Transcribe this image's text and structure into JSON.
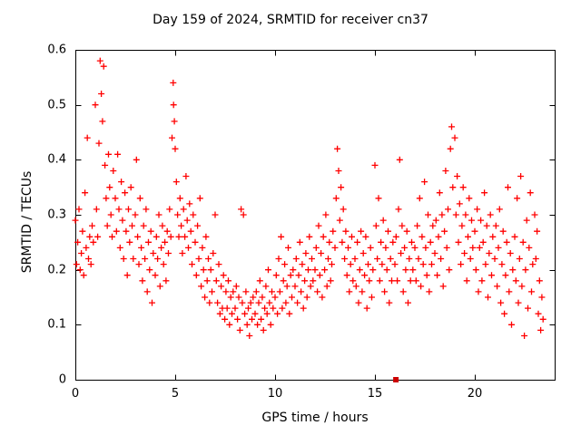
{
  "chart_data": {
    "type": "scatter",
    "title": "Day 159 of 2024, SRMTID for receiver cn37",
    "xlabel": "GPS time / hours",
    "ylabel": "SRMTID / TECUs",
    "xlim": [
      0,
      24
    ],
    "ylim": [
      0,
      0.6
    ],
    "xticks": [
      0,
      5,
      10,
      15,
      20
    ],
    "xtick_labels": [
      "0",
      "5",
      "10",
      "15",
      "20"
    ],
    "yticks": [
      0,
      0.1,
      0.2,
      0.3,
      0.4,
      0.5,
      0.6
    ],
    "ytick_labels": [
      "0",
      "0.1",
      "0.2",
      "0.3",
      "0.4",
      "0.5",
      "0.6"
    ],
    "grid": false,
    "legend": "none",
    "marker": "plus",
    "marker_color": "#ff0000",
    "flag_point": {
      "x": 16.05,
      "y": 0.0,
      "marker": "filled-square",
      "color": "#cc0000"
    },
    "points": [
      [
        0.0,
        0.29
      ],
      [
        0.06,
        0.21
      ],
      [
        0.12,
        0.25
      ],
      [
        0.18,
        0.31
      ],
      [
        0.24,
        0.2
      ],
      [
        0.3,
        0.23
      ],
      [
        0.36,
        0.27
      ],
      [
        0.42,
        0.19
      ],
      [
        0.48,
        0.34
      ],
      [
        0.54,
        0.24
      ],
      [
        0.6,
        0.44
      ],
      [
        0.66,
        0.22
      ],
      [
        0.72,
        0.26
      ],
      [
        0.78,
        0.21
      ],
      [
        0.84,
        0.28
      ],
      [
        0.9,
        0.25
      ],
      [
        1.0,
        0.5
      ],
      [
        1.06,
        0.31
      ],
      [
        1.12,
        0.26
      ],
      [
        1.18,
        0.43
      ],
      [
        1.24,
        0.58
      ],
      [
        1.3,
        0.52
      ],
      [
        1.36,
        0.47
      ],
      [
        1.42,
        0.57
      ],
      [
        1.48,
        0.39
      ],
      [
        1.54,
        0.33
      ],
      [
        1.6,
        0.28
      ],
      [
        1.66,
        0.41
      ],
      [
        1.72,
        0.35
      ],
      [
        1.78,
        0.3
      ],
      [
        1.84,
        0.26
      ],
      [
        1.9,
        0.38
      ],
      [
        2.0,
        0.33
      ],
      [
        2.06,
        0.27
      ],
      [
        2.12,
        0.41
      ],
      [
        2.18,
        0.31
      ],
      [
        2.24,
        0.24
      ],
      [
        2.3,
        0.36
      ],
      [
        2.36,
        0.29
      ],
      [
        2.42,
        0.22
      ],
      [
        2.48,
        0.34
      ],
      [
        2.54,
        0.27
      ],
      [
        2.6,
        0.19
      ],
      [
        2.66,
        0.31
      ],
      [
        2.72,
        0.25
      ],
      [
        2.78,
        0.35
      ],
      [
        2.84,
        0.28
      ],
      [
        2.9,
        0.22
      ],
      [
        3.0,
        0.3
      ],
      [
        3.06,
        0.4
      ],
      [
        3.12,
        0.26
      ],
      [
        3.18,
        0.21
      ],
      [
        3.24,
        0.33
      ],
      [
        3.3,
        0.24
      ],
      [
        3.36,
        0.18
      ],
      [
        3.42,
        0.28
      ],
      [
        3.48,
        0.22
      ],
      [
        3.54,
        0.31
      ],
      [
        3.6,
        0.16
      ],
      [
        3.66,
        0.25
      ],
      [
        3.72,
        0.2
      ],
      [
        3.78,
        0.27
      ],
      [
        3.84,
        0.14
      ],
      [
        3.9,
        0.23
      ],
      [
        4.0,
        0.19
      ],
      [
        4.06,
        0.26
      ],
      [
        4.12,
        0.22
      ],
      [
        4.18,
        0.3
      ],
      [
        4.24,
        0.17
      ],
      [
        4.3,
        0.24
      ],
      [
        4.36,
        0.28
      ],
      [
        4.42,
        0.21
      ],
      [
        4.48,
        0.25
      ],
      [
        4.54,
        0.18
      ],
      [
        4.6,
        0.27
      ],
      [
        4.66,
        0.23
      ],
      [
        4.72,
        0.31
      ],
      [
        4.78,
        0.26
      ],
      [
        4.84,
        0.44
      ],
      [
        4.9,
        0.54
      ],
      [
        4.92,
        0.5
      ],
      [
        4.96,
        0.47
      ],
      [
        5.0,
        0.42
      ],
      [
        5.06,
        0.36
      ],
      [
        5.12,
        0.3
      ],
      [
        5.18,
        0.26
      ],
      [
        5.24,
        0.33
      ],
      [
        5.3,
        0.28
      ],
      [
        5.36,
        0.23
      ],
      [
        5.42,
        0.31
      ],
      [
        5.48,
        0.26
      ],
      [
        5.54,
        0.37
      ],
      [
        5.6,
        0.29
      ],
      [
        5.66,
        0.24
      ],
      [
        5.72,
        0.32
      ],
      [
        5.78,
        0.27
      ],
      [
        5.84,
        0.21
      ],
      [
        5.9,
        0.3
      ],
      [
        6.0,
        0.25
      ],
      [
        6.06,
        0.19
      ],
      [
        6.12,
        0.28
      ],
      [
        6.18,
        0.22
      ],
      [
        6.24,
        0.33
      ],
      [
        6.3,
        0.17
      ],
      [
        6.36,
        0.24
      ],
      [
        6.42,
        0.2
      ],
      [
        6.48,
        0.15
      ],
      [
        6.54,
        0.26
      ],
      [
        6.6,
        0.18
      ],
      [
        6.66,
        0.22
      ],
      [
        6.72,
        0.14
      ],
      [
        6.78,
        0.2
      ],
      [
        6.84,
        0.16
      ],
      [
        6.9,
        0.23
      ],
      [
        7.0,
        0.3
      ],
      [
        7.06,
        0.18
      ],
      [
        7.12,
        0.14
      ],
      [
        7.18,
        0.21
      ],
      [
        7.24,
        0.12
      ],
      [
        7.3,
        0.17
      ],
      [
        7.36,
        0.13
      ],
      [
        7.42,
        0.19
      ],
      [
        7.48,
        0.11
      ],
      [
        7.54,
        0.16
      ],
      [
        7.6,
        0.13
      ],
      [
        7.66,
        0.18
      ],
      [
        7.72,
        0.1
      ],
      [
        7.78,
        0.15
      ],
      [
        7.84,
        0.12
      ],
      [
        7.9,
        0.16
      ],
      [
        8.0,
        0.13
      ],
      [
        8.06,
        0.17
      ],
      [
        8.12,
        0.11
      ],
      [
        8.18,
        0.15
      ],
      [
        8.24,
        0.09
      ],
      [
        8.3,
        0.31
      ],
      [
        8.36,
        0.14
      ],
      [
        8.42,
        0.3
      ],
      [
        8.48,
        0.12
      ],
      [
        8.54,
        0.16
      ],
      [
        8.6,
        0.1
      ],
      [
        8.66,
        0.13
      ],
      [
        8.72,
        0.08
      ],
      [
        8.78,
        0.14
      ],
      [
        8.84,
        0.11
      ],
      [
        8.9,
        0.15
      ],
      [
        9.0,
        0.12
      ],
      [
        9.06,
        0.16
      ],
      [
        9.12,
        0.1
      ],
      [
        9.18,
        0.14
      ],
      [
        9.24,
        0.18
      ],
      [
        9.3,
        0.11
      ],
      [
        9.36,
        0.15
      ],
      [
        9.42,
        0.09
      ],
      [
        9.48,
        0.13
      ],
      [
        9.54,
        0.17
      ],
      [
        9.6,
        0.12
      ],
      [
        9.66,
        0.2
      ],
      [
        9.72,
        0.14
      ],
      [
        9.78,
        0.1
      ],
      [
        9.84,
        0.16
      ],
      [
        9.9,
        0.13
      ],
      [
        10.0,
        0.15
      ],
      [
        10.06,
        0.19
      ],
      [
        10.12,
        0.12
      ],
      [
        10.18,
        0.22
      ],
      [
        10.24,
        0.16
      ],
      [
        10.3,
        0.26
      ],
      [
        10.36,
        0.13
      ],
      [
        10.42,
        0.18
      ],
      [
        10.48,
        0.21
      ],
      [
        10.54,
        0.14
      ],
      [
        10.6,
        0.17
      ],
      [
        10.66,
        0.24
      ],
      [
        10.72,
        0.12
      ],
      [
        10.78,
        0.19
      ],
      [
        10.84,
        0.15
      ],
      [
        10.9,
        0.2
      ],
      [
        11.0,
        0.17
      ],
      [
        11.06,
        0.22
      ],
      [
        11.12,
        0.14
      ],
      [
        11.18,
        0.19
      ],
      [
        11.24,
        0.25
      ],
      [
        11.3,
        0.16
      ],
      [
        11.36,
        0.21
      ],
      [
        11.42,
        0.13
      ],
      [
        11.48,
        0.18
      ],
      [
        11.54,
        0.23
      ],
      [
        11.6,
        0.15
      ],
      [
        11.66,
        0.2
      ],
      [
        11.72,
        0.26
      ],
      [
        11.78,
        0.17
      ],
      [
        11.84,
        0.22
      ],
      [
        11.9,
        0.18
      ],
      [
        12.0,
        0.2
      ],
      [
        12.06,
        0.24
      ],
      [
        12.12,
        0.16
      ],
      [
        12.18,
        0.28
      ],
      [
        12.24,
        0.19
      ],
      [
        12.3,
        0.23
      ],
      [
        12.36,
        0.15
      ],
      [
        12.42,
        0.26
      ],
      [
        12.48,
        0.2
      ],
      [
        12.54,
        0.3
      ],
      [
        12.6,
        0.17
      ],
      [
        12.66,
        0.22
      ],
      [
        12.72,
        0.25
      ],
      [
        12.78,
        0.18
      ],
      [
        12.84,
        0.21
      ],
      [
        12.9,
        0.27
      ],
      [
        13.0,
        0.24
      ],
      [
        13.06,
        0.33
      ],
      [
        13.12,
        0.42
      ],
      [
        13.18,
        0.38
      ],
      [
        13.24,
        0.29
      ],
      [
        13.3,
        0.35
      ],
      [
        13.36,
        0.25
      ],
      [
        13.42,
        0.31
      ],
      [
        13.48,
        0.22
      ],
      [
        13.54,
        0.27
      ],
      [
        13.6,
        0.19
      ],
      [
        13.66,
        0.24
      ],
      [
        13.72,
        0.16
      ],
      [
        13.78,
        0.21
      ],
      [
        13.84,
        0.26
      ],
      [
        13.9,
        0.18
      ],
      [
        14.0,
        0.22
      ],
      [
        14.06,
        0.17
      ],
      [
        14.12,
        0.25
      ],
      [
        14.18,
        0.14
      ],
      [
        14.24,
        0.2
      ],
      [
        14.3,
        0.27
      ],
      [
        14.36,
        0.16
      ],
      [
        14.42,
        0.23
      ],
      [
        14.48,
        0.19
      ],
      [
        14.54,
        0.26
      ],
      [
        14.6,
        0.13
      ],
      [
        14.66,
        0.21
      ],
      [
        14.72,
        0.18
      ],
      [
        14.78,
        0.24
      ],
      [
        14.84,
        0.15
      ],
      [
        14.9,
        0.2
      ],
      [
        15.0,
        0.39
      ],
      [
        15.06,
        0.28
      ],
      [
        15.12,
        0.22
      ],
      [
        15.18,
        0.33
      ],
      [
        15.24,
        0.18
      ],
      [
        15.3,
        0.25
      ],
      [
        15.36,
        0.21
      ],
      [
        15.42,
        0.29
      ],
      [
        15.48,
        0.16
      ],
      [
        15.54,
        0.24
      ],
      [
        15.6,
        0.2
      ],
      [
        15.66,
        0.27
      ],
      [
        15.72,
        0.14
      ],
      [
        15.78,
        0.22
      ],
      [
        15.84,
        0.18
      ],
      [
        15.9,
        0.25
      ],
      [
        16.0,
        0.21
      ],
      [
        16.06,
        0.26
      ],
      [
        16.12,
        0.18
      ],
      [
        16.18,
        0.31
      ],
      [
        16.24,
        0.4
      ],
      [
        16.3,
        0.23
      ],
      [
        16.36,
        0.28
      ],
      [
        16.42,
        0.16
      ],
      [
        16.48,
        0.24
      ],
      [
        16.54,
        0.2
      ],
      [
        16.6,
        0.27
      ],
      [
        16.66,
        0.14
      ],
      [
        16.72,
        0.22
      ],
      [
        16.78,
        0.18
      ],
      [
        16.84,
        0.25
      ],
      [
        16.9,
        0.2
      ],
      [
        17.0,
        0.24
      ],
      [
        17.06,
        0.18
      ],
      [
        17.12,
        0.28
      ],
      [
        17.18,
        0.22
      ],
      [
        17.24,
        0.33
      ],
      [
        17.3,
        0.17
      ],
      [
        17.36,
        0.26
      ],
      [
        17.42,
        0.21
      ],
      [
        17.48,
        0.36
      ],
      [
        17.54,
        0.24
      ],
      [
        17.6,
        0.19
      ],
      [
        17.66,
        0.3
      ],
      [
        17.72,
        0.16
      ],
      [
        17.78,
        0.25
      ],
      [
        17.84,
        0.21
      ],
      [
        17.9,
        0.28
      ],
      [
        18.0,
        0.23
      ],
      [
        18.06,
        0.29
      ],
      [
        18.12,
        0.19
      ],
      [
        18.18,
        0.26
      ],
      [
        18.24,
        0.34
      ],
      [
        18.3,
        0.22
      ],
      [
        18.36,
        0.3
      ],
      [
        18.42,
        0.17
      ],
      [
        18.48,
        0.27
      ],
      [
        18.54,
        0.38
      ],
      [
        18.6,
        0.24
      ],
      [
        18.66,
        0.31
      ],
      [
        18.72,
        0.2
      ],
      [
        18.78,
        0.42
      ],
      [
        18.84,
        0.46
      ],
      [
        18.9,
        0.35
      ],
      [
        19.0,
        0.44
      ],
      [
        19.06,
        0.3
      ],
      [
        19.12,
        0.37
      ],
      [
        19.18,
        0.25
      ],
      [
        19.24,
        0.32
      ],
      [
        19.3,
        0.21
      ],
      [
        19.36,
        0.28
      ],
      [
        19.42,
        0.35
      ],
      [
        19.48,
        0.23
      ],
      [
        19.54,
        0.3
      ],
      [
        19.6,
        0.18
      ],
      [
        19.66,
        0.26
      ],
      [
        19.72,
        0.33
      ],
      [
        19.78,
        0.22
      ],
      [
        19.84,
        0.29
      ],
      [
        19.9,
        0.24
      ],
      [
        20.0,
        0.27
      ],
      [
        20.06,
        0.2
      ],
      [
        20.12,
        0.31
      ],
      [
        20.18,
        0.16
      ],
      [
        20.24,
        0.24
      ],
      [
        20.3,
        0.29
      ],
      [
        20.36,
        0.18
      ],
      [
        20.42,
        0.25
      ],
      [
        20.48,
        0.34
      ],
      [
        20.54,
        0.21
      ],
      [
        20.6,
        0.28
      ],
      [
        20.66,
        0.15
      ],
      [
        20.72,
        0.23
      ],
      [
        20.78,
        0.3
      ],
      [
        20.84,
        0.19
      ],
      [
        20.9,
        0.26
      ],
      [
        21.0,
        0.22
      ],
      [
        21.06,
        0.28
      ],
      [
        21.12,
        0.17
      ],
      [
        21.18,
        0.24
      ],
      [
        21.24,
        0.31
      ],
      [
        21.3,
        0.14
      ],
      [
        21.36,
        0.21
      ],
      [
        21.42,
        0.27
      ],
      [
        21.48,
        0.12
      ],
      [
        21.54,
        0.19
      ],
      [
        21.6,
        0.25
      ],
      [
        21.66,
        0.35
      ],
      [
        21.72,
        0.16
      ],
      [
        21.78,
        0.23
      ],
      [
        21.84,
        0.1
      ],
      [
        21.9,
        0.2
      ],
      [
        22.0,
        0.26
      ],
      [
        22.06,
        0.18
      ],
      [
        22.12,
        0.33
      ],
      [
        22.18,
        0.14
      ],
      [
        22.24,
        0.22
      ],
      [
        22.3,
        0.37
      ],
      [
        22.36,
        0.17
      ],
      [
        22.42,
        0.25
      ],
      [
        22.48,
        0.08
      ],
      [
        22.54,
        0.2
      ],
      [
        22.6,
        0.29
      ],
      [
        22.66,
        0.13
      ],
      [
        22.72,
        0.24
      ],
      [
        22.78,
        0.34
      ],
      [
        22.84,
        0.16
      ],
      [
        22.9,
        0.21
      ],
      [
        23.0,
        0.3
      ],
      [
        23.06,
        0.22
      ],
      [
        23.12,
        0.27
      ],
      [
        23.18,
        0.12
      ],
      [
        23.24,
        0.18
      ],
      [
        23.3,
        0.09
      ],
      [
        23.36,
        0.15
      ],
      [
        23.42,
        0.11
      ]
    ]
  }
}
